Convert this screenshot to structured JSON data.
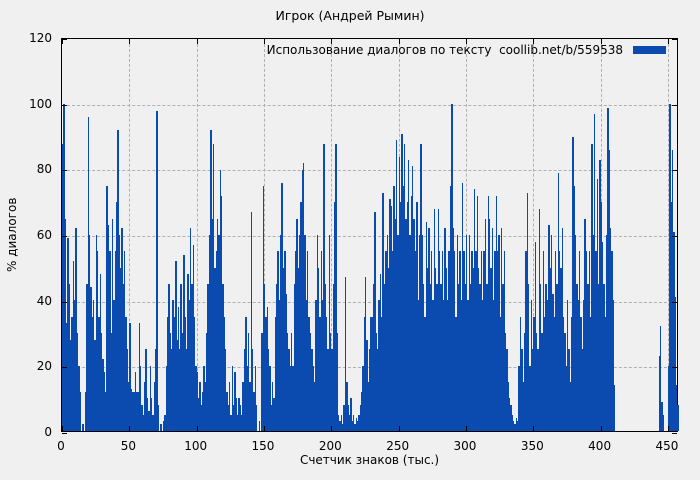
{
  "title": "Игрок (Андрей Рымин)",
  "legend": {
    "label": "Использование диалогов по тексту  coollib.net/b/559538"
  },
  "axes": {
    "ylabel": "% диалогов",
    "xlabel": "Счетчик знаков (тыс.)",
    "yticks": [
      0,
      20,
      40,
      60,
      80,
      100,
      120
    ],
    "xticks": [
      0,
      50,
      100,
      150,
      200,
      250,
      300,
      350,
      400,
      450
    ]
  },
  "colors": {
    "bar": "#0b4bb0",
    "background": "#f0f0f0",
    "grid": "#b0b0b0",
    "axis": "#000000"
  },
  "chart_data": {
    "type": "bar",
    "title": "Игрок (Андрей Рымин)",
    "series_name": "Использование диалогов по тексту  coollib.net/b/559538",
    "xlabel": "Счетчик знаков (тыс.)",
    "ylabel": "% диалогов",
    "xlim": [
      0,
      458
    ],
    "ylim": [
      0,
      120
    ],
    "grid": true,
    "legend_position": "top-right",
    "x_start": 0,
    "x_step": 1,
    "values": [
      88,
      100,
      65,
      33,
      59,
      45,
      28,
      35,
      52,
      40,
      62,
      30,
      20,
      12,
      0,
      2,
      0,
      12,
      45,
      96,
      60,
      44,
      35,
      40,
      28,
      60,
      55,
      35,
      48,
      30,
      22,
      18,
      12,
      75,
      63,
      55,
      30,
      65,
      40,
      55,
      70,
      92,
      60,
      50,
      62,
      45,
      55,
      35,
      25,
      15,
      33,
      13,
      12,
      12,
      18,
      12,
      12,
      33,
      20,
      8,
      5,
      15,
      25,
      10,
      6,
      20,
      10,
      5,
      15,
      25,
      98,
      8,
      0,
      2,
      0,
      3,
      5,
      20,
      35,
      45,
      30,
      25,
      40,
      35,
      52,
      28,
      38,
      25,
      45,
      30,
      54,
      35,
      25,
      48,
      40,
      62,
      45,
      57,
      35,
      20,
      18,
      10,
      15,
      8,
      12,
      20,
      15,
      30,
      45,
      60,
      92,
      65,
      88,
      50,
      55,
      65,
      60,
      80,
      72,
      45,
      35,
      25,
      12,
      8,
      15,
      5,
      20,
      8,
      18,
      10,
      5,
      10,
      8,
      5,
      15,
      25,
      35,
      20,
      30,
      15,
      67,
      25,
      12,
      20,
      8,
      0,
      3,
      0,
      30,
      75,
      45,
      35,
      38,
      25,
      20,
      8,
      15,
      10,
      35,
      45,
      55,
      40,
      60,
      76,
      50,
      55,
      42,
      30,
      25,
      20,
      30,
      20,
      45,
      55,
      65,
      50,
      60,
      70,
      80,
      82,
      60,
      40,
      55,
      35,
      30,
      25,
      20,
      15,
      40,
      60,
      50,
      35,
      55,
      40,
      88,
      45,
      35,
      25,
      60,
      30,
      25,
      45,
      70,
      88,
      30,
      5,
      3,
      5,
      2,
      8,
      47,
      15,
      8,
      5,
      10,
      3,
      5,
      2,
      4,
      3,
      5,
      8,
      12,
      20,
      35,
      47,
      28,
      15,
      25,
      35,
      35,
      45,
      67,
      30,
      25,
      40,
      48,
      35,
      73,
      45,
      55,
      60,
      50,
      71,
      69,
      55,
      75,
      65,
      89,
      60,
      84,
      70,
      91,
      75,
      88,
      65,
      70,
      83,
      60,
      72,
      81,
      65,
      55,
      70,
      40,
      60,
      88,
      60,
      45,
      35,
      64,
      50,
      62,
      45,
      55,
      40,
      68,
      50,
      45,
      68,
      55,
      45,
      55,
      40,
      62,
      50,
      40,
      55,
      75,
      100,
      62,
      55,
      35,
      60,
      45,
      55,
      40,
      76,
      55,
      45,
      60,
      40,
      60,
      45,
      55,
      50,
      74,
      55,
      72,
      50,
      45,
      55,
      40,
      55,
      65,
      45,
      72,
      65,
      50,
      62,
      40,
      55,
      72,
      55,
      60,
      35,
      62,
      45,
      55,
      30,
      25,
      15,
      10,
      8,
      5,
      3,
      2,
      4,
      3,
      20,
      35,
      25,
      15,
      30,
      55,
      73,
      45,
      20,
      40,
      25,
      35,
      58,
      30,
      25,
      68,
      45,
      30,
      55,
      35,
      45,
      40,
      63,
      50,
      60,
      42,
      35,
      55,
      45,
      79,
      55,
      50,
      62,
      35,
      30,
      20,
      40,
      25,
      15,
      35,
      90,
      75,
      60,
      45,
      40,
      55,
      35,
      25,
      40,
      65,
      55,
      45,
      55,
      35,
      88,
      60,
      97,
      55,
      77,
      45,
      83,
      70,
      58,
      45,
      35,
      60,
      99,
      86,
      62,
      55,
      40,
      14,
      0,
      0,
      0,
      0,
      0,
      0,
      0,
      0,
      0,
      0,
      0,
      0,
      0,
      0,
      0,
      0,
      0,
      0,
      0,
      0,
      0,
      0,
      0,
      0,
      0,
      0,
      0,
      0,
      0,
      0,
      0,
      0,
      23,
      32,
      9,
      5,
      0,
      0,
      0,
      20,
      100,
      70,
      86,
      61,
      41,
      14,
      8
    ]
  }
}
